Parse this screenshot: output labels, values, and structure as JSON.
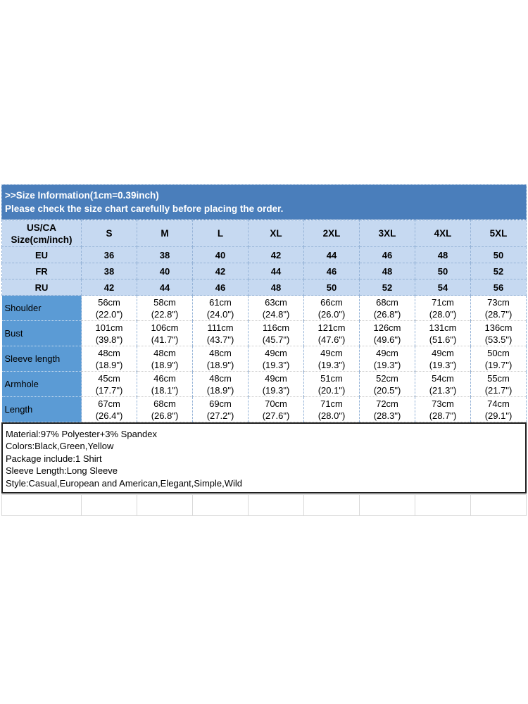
{
  "banner": {
    "line1": ">>Size Information(1cm=0.39inch)",
    "line2": "Please check the size chart carefully before placing the order."
  },
  "table": {
    "corner": {
      "line1": "US/CA",
      "line2": "Size(cm/inch)"
    },
    "size_headers": [
      "S",
      "M",
      "L",
      "XL",
      "2XL",
      "3XL",
      "4XL",
      "5XL"
    ],
    "region_rows": [
      {
        "label": "EU",
        "values": [
          "36",
          "38",
          "40",
          "42",
          "44",
          "46",
          "48",
          "50"
        ]
      },
      {
        "label": "FR",
        "values": [
          "38",
          "40",
          "42",
          "44",
          "46",
          "48",
          "50",
          "52"
        ]
      },
      {
        "label": "RU",
        "values": [
          "42",
          "44",
          "46",
          "48",
          "50",
          "52",
          "54",
          "56"
        ]
      }
    ],
    "measurement_rows": [
      {
        "label": "Shoulder",
        "cells": [
          {
            "cm": "56cm",
            "in": "(22.0\")"
          },
          {
            "cm": "58cm",
            "in": "(22.8\")"
          },
          {
            "cm": "61cm",
            "in": "(24.0\")"
          },
          {
            "cm": "63cm",
            "in": "(24.8\")"
          },
          {
            "cm": "66cm",
            "in": "(26.0\")"
          },
          {
            "cm": "68cm",
            "in": "(26.8\")"
          },
          {
            "cm": "71cm",
            "in": "(28.0\")"
          },
          {
            "cm": "73cm",
            "in": "(28.7\")"
          }
        ]
      },
      {
        "label": "Bust",
        "cells": [
          {
            "cm": "101cm",
            "in": "(39.8\")"
          },
          {
            "cm": "106cm",
            "in": "(41.7\")"
          },
          {
            "cm": "111cm",
            "in": "(43.7\")"
          },
          {
            "cm": "116cm",
            "in": "(45.7\")"
          },
          {
            "cm": "121cm",
            "in": "(47.6\")"
          },
          {
            "cm": "126cm",
            "in": "(49.6\")"
          },
          {
            "cm": "131cm",
            "in": "(51.6\")"
          },
          {
            "cm": "136cm",
            "in": "(53.5\")"
          }
        ]
      },
      {
        "label": "Sleeve length",
        "cells": [
          {
            "cm": "48cm",
            "in": "(18.9\")"
          },
          {
            "cm": "48cm",
            "in": "(18.9\")"
          },
          {
            "cm": "48cm",
            "in": "(18.9\")"
          },
          {
            "cm": "49cm",
            "in": "(19.3\")"
          },
          {
            "cm": "49cm",
            "in": "(19.3\")"
          },
          {
            "cm": "49cm",
            "in": "(19.3\")"
          },
          {
            "cm": "49cm",
            "in": "(19.3\")"
          },
          {
            "cm": "50cm",
            "in": "(19.7\")"
          }
        ]
      },
      {
        "label": "Armhole",
        "cells": [
          {
            "cm": "45cm",
            "in": "(17.7\")"
          },
          {
            "cm": "46cm",
            "in": "(18.1\")"
          },
          {
            "cm": "48cm",
            "in": "(18.9\")"
          },
          {
            "cm": "49cm",
            "in": "(19.3\")"
          },
          {
            "cm": "51cm",
            "in": "(20.1\")"
          },
          {
            "cm": "52cm",
            "in": "(20.5\")"
          },
          {
            "cm": "54cm",
            "in": "(21.3\")"
          },
          {
            "cm": "55cm",
            "in": "(21.7\")"
          }
        ]
      },
      {
        "label": "Length",
        "cells": [
          {
            "cm": "67cm",
            "in": "(26.4\")"
          },
          {
            "cm": "68cm",
            "in": "(26.8\")"
          },
          {
            "cm": "69cm",
            "in": "(27.2\")"
          },
          {
            "cm": "70cm",
            "in": "(27.6\")"
          },
          {
            "cm": "71cm",
            "in": "(28.0\")"
          },
          {
            "cm": "72cm",
            "in": "(28.3\")"
          },
          {
            "cm": "73cm",
            "in": "(28.7\")"
          },
          {
            "cm": "74cm",
            "in": "(29.1\")"
          }
        ]
      }
    ]
  },
  "info": {
    "lines": [
      "Material:97% Polyester+3% Spandex",
      "Colors:Black,Green,Yellow",
      "Package include:1 Shirt",
      "Sleeve Length:Long Sleeve",
      "Style:Casual,European and American,Elegant,Simple,Wild"
    ]
  },
  "colors": {
    "banner-blue": "#4a7ebb",
    "label-blue": "#5b9bd5",
    "cell-blue": "#c6d9f1",
    "grid-blue": "#95b3d7",
    "grid-gray": "#c9c9c9",
    "empty-grid": "#d9d9d9",
    "info-border": "#1f1f1f"
  }
}
